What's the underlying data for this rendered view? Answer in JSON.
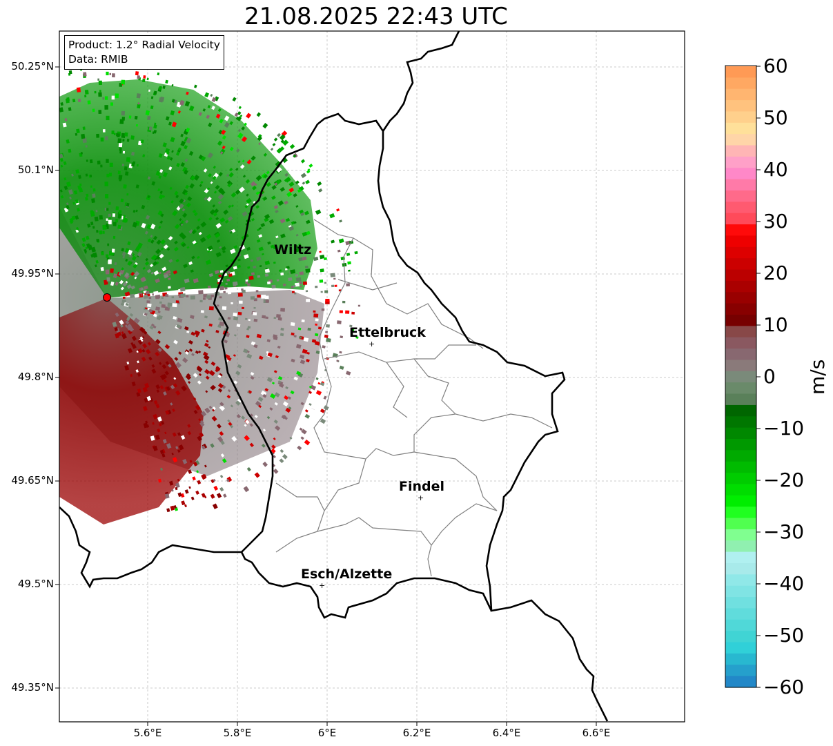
{
  "title": "21.08.2025 22:43 UTC",
  "info": {
    "product": "Product: 1.2° Radial Velocity",
    "data_source": "Data: RMIB"
  },
  "axes": {
    "lat_ticks": [
      "50.25°N",
      "50.1°N",
      "49.95°N",
      "49.8°N",
      "49.65°N",
      "49.5°N",
      "49.35°N"
    ],
    "lon_ticks": [
      "5.6°E",
      "5.8°E",
      "6°E",
      "6.2°E",
      "6.4°E",
      "6.6°E"
    ]
  },
  "cities": [
    {
      "name": "Wiltz"
    },
    {
      "name": "Ettelbruck"
    },
    {
      "name": "Findel"
    },
    {
      "name": "Esch/Alzette"
    }
  ],
  "colorbar": {
    "label": "m/s",
    "ticks": [
      "60",
      "50",
      "40",
      "30",
      "20",
      "10",
      "0",
      "−10",
      "−20",
      "−30",
      "−40",
      "−50",
      "−60"
    ],
    "range": [
      -60,
      60
    ]
  },
  "colors": {
    "radar_site": "#ff0000",
    "border": "#000000",
    "district": "#808080"
  }
}
